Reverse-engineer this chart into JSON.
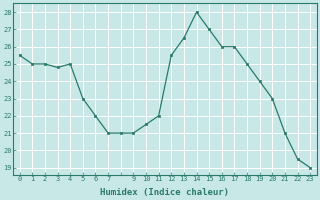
{
  "x": [
    0,
    1,
    2,
    3,
    4,
    5,
    6,
    7,
    8,
    9,
    10,
    11,
    12,
    13,
    14,
    15,
    16,
    17,
    18,
    19,
    20,
    21,
    22,
    23
  ],
  "y": [
    25.5,
    25.0,
    25.0,
    24.8,
    25.0,
    23.0,
    22.0,
    21.0,
    21.0,
    21.0,
    21.5,
    22.0,
    25.5,
    26.5,
    28.0,
    27.0,
    26.0,
    26.0,
    25.0,
    24.0,
    23.0,
    21.0,
    19.5,
    19.0
  ],
  "xlabel": "Humidex (Indice chaleur)",
  "ylim": [
    18.6,
    28.5
  ],
  "xlim": [
    -0.5,
    23.5
  ],
  "yticks": [
    19,
    20,
    21,
    22,
    23,
    24,
    25,
    26,
    27,
    28
  ],
  "xtick_labels": [
    "0",
    "1",
    "2",
    "3",
    "4",
    "5",
    "6",
    "7",
    "",
    "9",
    "10",
    "11",
    "12",
    "13",
    "14",
    "15",
    "16",
    "17",
    "18",
    "19",
    "20",
    "21",
    "22",
    "23"
  ],
  "xticks": [
    0,
    1,
    2,
    3,
    4,
    5,
    6,
    7,
    8,
    9,
    10,
    11,
    12,
    13,
    14,
    15,
    16,
    17,
    18,
    19,
    20,
    21,
    22,
    23
  ],
  "line_color": "#2a7a6a",
  "marker_color": "#2a7a6a",
  "bg_color": "#c8e8e8",
  "grid_color": "#ffffff",
  "tick_color": "#2a7a6a",
  "xlabel_fontsize": 6.5,
  "tick_fontsize": 5.0
}
